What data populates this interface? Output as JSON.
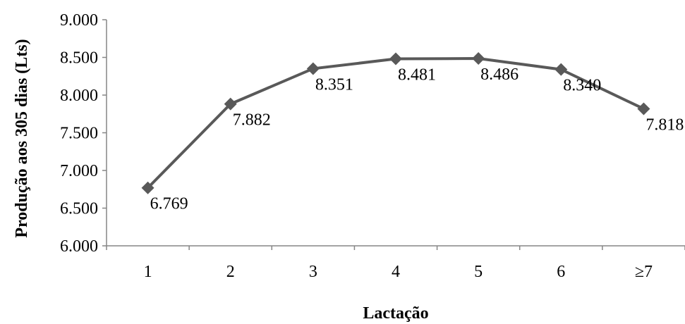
{
  "chart_data": {
    "type": "line",
    "title": "",
    "xlabel": "Lactação",
    "ylabel": "Produção aos 305 dias (Lts)",
    "categories": [
      "1",
      "2",
      "3",
      "4",
      "5",
      "6",
      "≥7"
    ],
    "series": [
      {
        "values": [
          6769,
          7882,
          8351,
          8481,
          8486,
          8340,
          7818
        ],
        "data_labels": [
          "6.769",
          "7.882",
          "8.351",
          "8.481",
          "8.486",
          "8.340",
          "7.818"
        ]
      }
    ],
    "ylim": [
      6000,
      9000
    ],
    "yticks": [
      6000,
      6500,
      7000,
      7500,
      8000,
      8500,
      9000
    ],
    "ytick_labels": [
      "6.000",
      "6.500",
      "7.000",
      "7.500",
      "8.000",
      "8.500",
      "9.000"
    ],
    "grid": false,
    "legend": "none",
    "colors": {
      "line": "#595959",
      "axis": "#868686"
    },
    "marker": "diamond"
  }
}
